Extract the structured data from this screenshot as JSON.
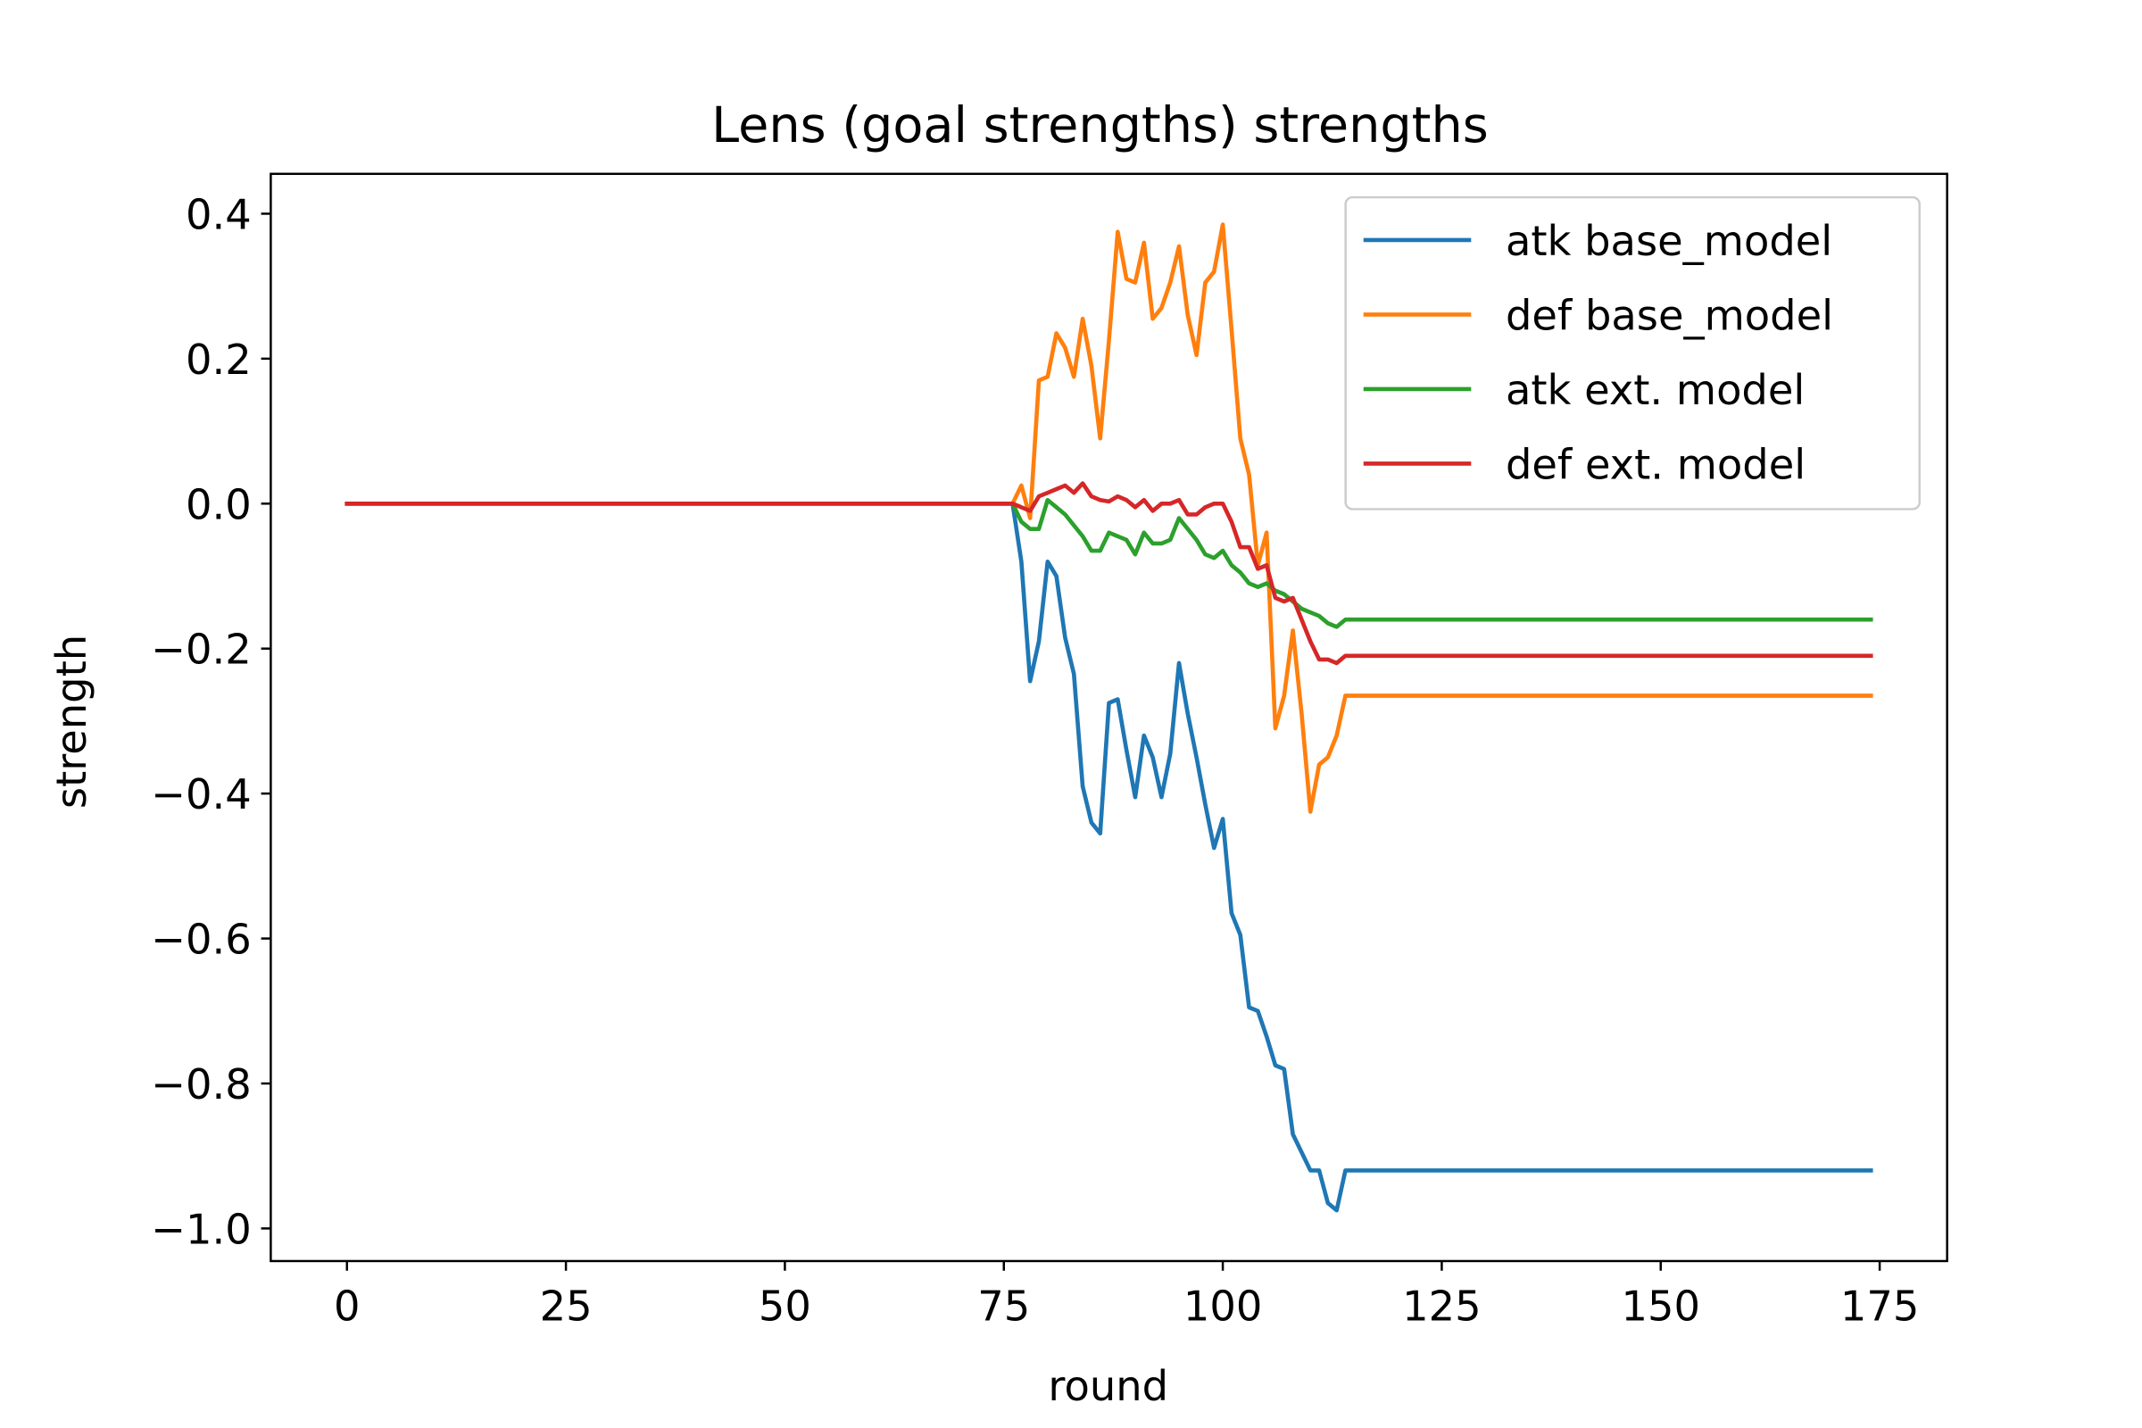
{
  "chart_data": {
    "type": "line",
    "title": "Lens (goal strengths) strengths",
    "xlabel": "round",
    "ylabel": "strength",
    "xlim": [
      -8.7,
      182.7
    ],
    "ylim": [
      -1.045,
      0.455
    ],
    "x_ticks": [
      0,
      25,
      50,
      75,
      100,
      125,
      150,
      175
    ],
    "y_ticks": [
      0.4,
      0.2,
      0.0,
      -0.2,
      -0.4,
      -0.6,
      -0.8,
      -1.0
    ],
    "x_tick_labels": [
      "0",
      "25",
      "50",
      "75",
      "100",
      "125",
      "150",
      "175"
    ],
    "y_tick_labels": [
      "0.4",
      "0.2",
      "0.0",
      "−0.2",
      "−0.4",
      "−0.6",
      "−0.8",
      "−1.0"
    ],
    "grid": false,
    "legend_position": "top-right",
    "series": [
      {
        "name": "atk base_model",
        "color": "#1f77b4",
        "points": [
          [
            0,
            0
          ],
          [
            76,
            0
          ],
          [
            77,
            -0.08
          ],
          [
            78,
            -0.245
          ],
          [
            79,
            -0.19
          ],
          [
            80,
            -0.08
          ],
          [
            81,
            -0.1
          ],
          [
            82,
            -0.185
          ],
          [
            83,
            -0.235
          ],
          [
            84,
            -0.39
          ],
          [
            85,
            -0.44
          ],
          [
            86,
            -0.455
          ],
          [
            87,
            -0.275
          ],
          [
            88,
            -0.27
          ],
          [
            89,
            -0.34
          ],
          [
            90,
            -0.405
          ],
          [
            91,
            -0.32
          ],
          [
            92,
            -0.35
          ],
          [
            93,
            -0.405
          ],
          [
            94,
            -0.345
          ],
          [
            95,
            -0.22
          ],
          [
            96,
            -0.29
          ],
          [
            97,
            -0.35
          ],
          [
            98,
            -0.415
          ],
          [
            99,
            -0.475
          ],
          [
            100,
            -0.435
          ],
          [
            101,
            -0.565
          ],
          [
            102,
            -0.595
          ],
          [
            103,
            -0.695
          ],
          [
            104,
            -0.7
          ],
          [
            105,
            -0.735
          ],
          [
            106,
            -0.775
          ],
          [
            107,
            -0.78
          ],
          [
            108,
            -0.87
          ],
          [
            109,
            -0.895
          ],
          [
            110,
            -0.92
          ],
          [
            111,
            -0.92
          ],
          [
            112,
            -0.965
          ],
          [
            113,
            -0.975
          ],
          [
            114,
            -0.92
          ],
          [
            174,
            -0.92
          ]
        ]
      },
      {
        "name": "def base_model",
        "color": "#ff7f0e",
        "points": [
          [
            0,
            0
          ],
          [
            76,
            0
          ],
          [
            77,
            0.025
          ],
          [
            78,
            -0.02
          ],
          [
            79,
            0.17
          ],
          [
            80,
            0.175
          ],
          [
            81,
            0.235
          ],
          [
            82,
            0.215
          ],
          [
            83,
            0.175
          ],
          [
            84,
            0.255
          ],
          [
            85,
            0.19
          ],
          [
            86,
            0.09
          ],
          [
            87,
            0.225
          ],
          [
            88,
            0.375
          ],
          [
            89,
            0.31
          ],
          [
            90,
            0.305
          ],
          [
            91,
            0.36
          ],
          [
            92,
            0.255
          ],
          [
            93,
            0.27
          ],
          [
            94,
            0.305
          ],
          [
            95,
            0.355
          ],
          [
            96,
            0.26
          ],
          [
            97,
            0.205
          ],
          [
            98,
            0.305
          ],
          [
            99,
            0.32
          ],
          [
            100,
            0.385
          ],
          [
            101,
            0.24
          ],
          [
            102,
            0.09
          ],
          [
            103,
            0.04
          ],
          [
            104,
            -0.085
          ],
          [
            105,
            -0.04
          ],
          [
            106,
            -0.31
          ],
          [
            107,
            -0.265
          ],
          [
            108,
            -0.175
          ],
          [
            109,
            -0.29
          ],
          [
            110,
            -0.425
          ],
          [
            111,
            -0.36
          ],
          [
            112,
            -0.35
          ],
          [
            113,
            -0.32
          ],
          [
            114,
            -0.265
          ],
          [
            174,
            -0.265
          ]
        ]
      },
      {
        "name": "atk ext. model",
        "color": "#2ca02c",
        "points": [
          [
            0,
            0
          ],
          [
            76,
            0
          ],
          [
            77,
            -0.025
          ],
          [
            78,
            -0.035
          ],
          [
            79,
            -0.035
          ],
          [
            80,
            0.005
          ],
          [
            81,
            -0.005
          ],
          [
            82,
            -0.015
          ],
          [
            83,
            -0.03
          ],
          [
            84,
            -0.045
          ],
          [
            85,
            -0.065
          ],
          [
            86,
            -0.065
          ],
          [
            87,
            -0.04
          ],
          [
            88,
            -0.045
          ],
          [
            89,
            -0.05
          ],
          [
            90,
            -0.07
          ],
          [
            91,
            -0.04
          ],
          [
            92,
            -0.055
          ],
          [
            93,
            -0.055
          ],
          [
            94,
            -0.05
          ],
          [
            95,
            -0.02
          ],
          [
            96,
            -0.035
          ],
          [
            97,
            -0.05
          ],
          [
            98,
            -0.07
          ],
          [
            99,
            -0.075
          ],
          [
            100,
            -0.065
          ],
          [
            101,
            -0.085
          ],
          [
            102,
            -0.095
          ],
          [
            103,
            -0.11
          ],
          [
            104,
            -0.115
          ],
          [
            105,
            -0.11
          ],
          [
            106,
            -0.12
          ],
          [
            107,
            -0.125
          ],
          [
            108,
            -0.135
          ],
          [
            109,
            -0.145
          ],
          [
            110,
            -0.15
          ],
          [
            111,
            -0.155
          ],
          [
            112,
            -0.165
          ],
          [
            113,
            -0.17
          ],
          [
            114,
            -0.16
          ],
          [
            174,
            -0.16
          ]
        ]
      },
      {
        "name": "def ext. model",
        "color": "#d62728",
        "points": [
          [
            0,
            0
          ],
          [
            76,
            0
          ],
          [
            77,
            -0.005
          ],
          [
            78,
            -0.01
          ],
          [
            79,
            0.01
          ],
          [
            80,
            0.015
          ],
          [
            81,
            0.02
          ],
          [
            82,
            0.025
          ],
          [
            83,
            0.015
          ],
          [
            84,
            0.028
          ],
          [
            85,
            0.01
          ],
          [
            86,
            0.005
          ],
          [
            87,
            0.003
          ],
          [
            88,
            0.01
          ],
          [
            89,
            0.005
          ],
          [
            90,
            -0.005
          ],
          [
            91,
            0.005
          ],
          [
            92,
            -0.01
          ],
          [
            93,
            0.0
          ],
          [
            94,
            0.0
          ],
          [
            95,
            0.005
          ],
          [
            96,
            -0.015
          ],
          [
            97,
            -0.015
          ],
          [
            98,
            -0.005
          ],
          [
            99,
            0.0
          ],
          [
            100,
            0.0
          ],
          [
            101,
            -0.025
          ],
          [
            102,
            -0.06
          ],
          [
            103,
            -0.06
          ],
          [
            104,
            -0.09
          ],
          [
            105,
            -0.085
          ],
          [
            106,
            -0.13
          ],
          [
            107,
            -0.135
          ],
          [
            108,
            -0.13
          ],
          [
            109,
            -0.16
          ],
          [
            110,
            -0.19
          ],
          [
            111,
            -0.215
          ],
          [
            112,
            -0.215
          ],
          [
            113,
            -0.22
          ],
          [
            114,
            -0.21
          ],
          [
            174,
            -0.21
          ]
        ]
      }
    ]
  }
}
